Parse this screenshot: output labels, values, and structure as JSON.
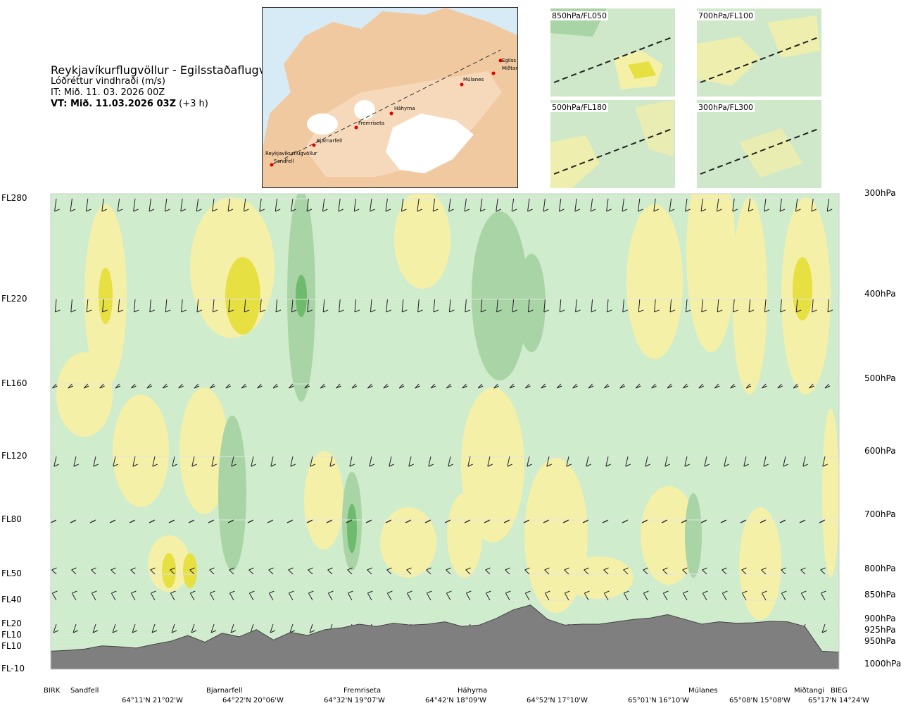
{
  "title": {
    "route": "Reykjavíkurflugvöllur - Egilsstaðaflugvöllur",
    "variable": "Lóðréttur vindhraði (m/s)",
    "issue": "IT: Mið. 11. 03. 2026 00Z",
    "valid_bold": "VT: Mið. 11.03.2026 03Z",
    "valid_offset": "(+3 h)"
  },
  "route_map": {
    "stations": [
      "Reykjavíkurflugvöllur",
      "Sandfell",
      "Bjarnarfell",
      "Fremriseta",
      "Háhyrna",
      "Múlanes",
      "Egilss",
      "Miðtangi"
    ]
  },
  "mini_maps": [
    {
      "label": "850hPa/FL050"
    },
    {
      "label": "700hPa/FL100"
    },
    {
      "label": "500hPa/FL180"
    },
    {
      "label": "300hPa/FL300"
    }
  ],
  "chart_data": {
    "type": "heatmap",
    "title": "Lóðréttur vindhraði (m/s)",
    "left_axis_labels": [
      "FL280",
      "FL220",
      "FL160",
      "FL120",
      "FL80",
      "FL50",
      "FL40",
      "FL20",
      "FL10",
      "FL10",
      "FL-10"
    ],
    "right_axis_labels": [
      "300hPa",
      "400hPa",
      "500hPa",
      "600hPa",
      "700hPa",
      "800hPa",
      "850hPa",
      "900hPa",
      "925hPa",
      "950hPa",
      "1000hPa"
    ],
    "pressure_levels_hpa": [
      300,
      400,
      500,
      600,
      700,
      800,
      850,
      900,
      925,
      950,
      1000
    ],
    "waypoints": [
      "BIRK",
      "Sandfell",
      "Bjarnarfell",
      "Fremriseta",
      "Háhyrna",
      "Múlanes",
      "Miðtangi",
      "BIEG"
    ],
    "coordinate_ticks": [
      "64°11'N 21°02'W",
      "64°22'N 20°06'W",
      "64°32'N 19°07'W",
      "64°42'N 18°09'W",
      "64°52'N 17°10'W",
      "65°01'N 16°10'W",
      "65°08'N 15°08'W",
      "65°17'N 14°24'W"
    ],
    "colors": {
      "weak_down": "#cfeccc",
      "moderate_down": "#a9d5a6",
      "strong_down": "#6fbb6d",
      "near_zero": "#fdfde2",
      "weak_up": "#f5f0a8",
      "strong_up": "#e6e042",
      "terrain": "#7f7f7f"
    },
    "terrain_profile_hpa": [
      960,
      958,
      955,
      948,
      950,
      953,
      945,
      938,
      925,
      940,
      920,
      928,
      912,
      935,
      918,
      925,
      912,
      908,
      900,
      905,
      898,
      902,
      900,
      895,
      905,
      902,
      888,
      870,
      860,
      890,
      902,
      900,
      900,
      895,
      890,
      887,
      880,
      890,
      900,
      895,
      898,
      897,
      894,
      895,
      905,
      960,
      962
    ]
  }
}
